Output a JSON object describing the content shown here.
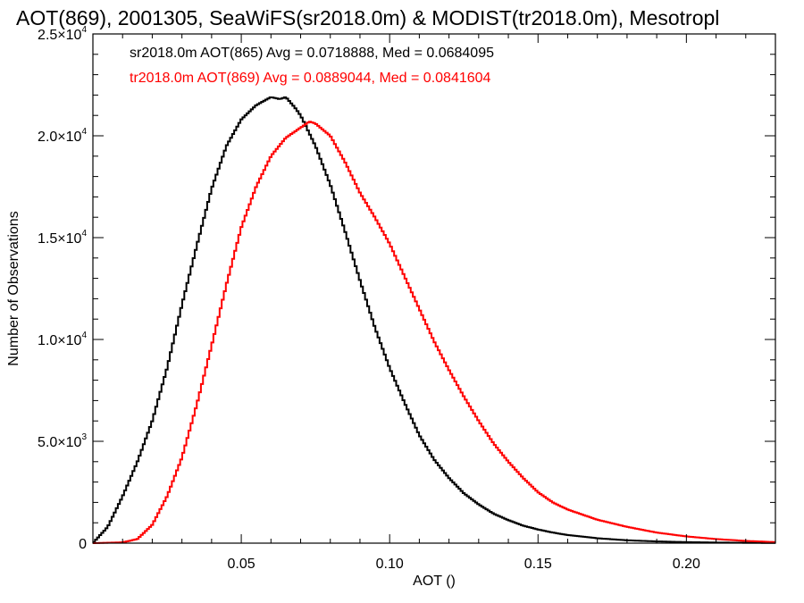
{
  "chart_data": {
    "type": "line",
    "title": "AOT(869), 2001305, SeaWiFS(sr2018.0m) & MODIST(tr2018.0m), Mesotropl",
    "xlabel": "AOT ()",
    "ylabel": "Number of Observations",
    "xlim": [
      0.0,
      0.23
    ],
    "ylim": [
      0,
      25000
    ],
    "x_ticks": [
      {
        "value": 0.05,
        "label": "0.05"
      },
      {
        "value": 0.1,
        "label": "0.10"
      },
      {
        "value": 0.15,
        "label": "0.15"
      },
      {
        "value": 0.2,
        "label": "0.20"
      }
    ],
    "y_ticks": [
      {
        "value": 0,
        "base": "0",
        "exp": ""
      },
      {
        "value": 5000,
        "base": "5.0×10",
        "exp": "3"
      },
      {
        "value": 10000,
        "base": "1.0×10",
        "exp": "4"
      },
      {
        "value": 15000,
        "base": "1.5×10",
        "exp": "4"
      },
      {
        "value": 20000,
        "base": "2.0×10",
        "exp": "4"
      },
      {
        "value": 25000,
        "base": "2.5×10",
        "exp": "4"
      }
    ],
    "grid": false,
    "annotations": [
      {
        "text": "sr2018.0m AOT(865) Avg = 0.0718888, Med = 0.0684095",
        "color": "#000000"
      },
      {
        "text": "tr2018.0m AOT(869) Avg = 0.0889044, Med = 0.0841604",
        "color": "#ff0000"
      }
    ],
    "series": [
      {
        "color": "#000000",
        "x": [
          0.0,
          0.005,
          0.01,
          0.015,
          0.02,
          0.025,
          0.03,
          0.035,
          0.04,
          0.045,
          0.05,
          0.055,
          0.06,
          0.063,
          0.065,
          0.068,
          0.07,
          0.075,
          0.08,
          0.085,
          0.09,
          0.095,
          0.1,
          0.105,
          0.11,
          0.115,
          0.12,
          0.125,
          0.13,
          0.135,
          0.14,
          0.145,
          0.15,
          0.155,
          0.16,
          0.17,
          0.18,
          0.19,
          0.2,
          0.21,
          0.22,
          0.23
        ],
        "values": [
          0,
          800,
          2300,
          4000,
          6000,
          8600,
          11700,
          14600,
          17400,
          19500,
          20800,
          21500,
          21900,
          21800,
          21900,
          21400,
          21000,
          19500,
          17600,
          15300,
          12900,
          10600,
          8600,
          6900,
          5300,
          4100,
          3200,
          2450,
          1900,
          1450,
          1130,
          860,
          670,
          520,
          400,
          240,
          140,
          85,
          50,
          30,
          18,
          10
        ]
      },
      {
        "color": "#ff0000",
        "x": [
          0.0,
          0.01,
          0.015,
          0.02,
          0.025,
          0.03,
          0.035,
          0.04,
          0.045,
          0.05,
          0.055,
          0.06,
          0.065,
          0.07,
          0.073,
          0.075,
          0.08,
          0.085,
          0.09,
          0.095,
          0.1,
          0.105,
          0.11,
          0.115,
          0.12,
          0.125,
          0.13,
          0.135,
          0.14,
          0.145,
          0.15,
          0.155,
          0.16,
          0.17,
          0.18,
          0.19,
          0.2,
          0.21,
          0.22,
          0.23
        ],
        "values": [
          0,
          40,
          200,
          900,
          2300,
          4200,
          6800,
          9700,
          12700,
          15500,
          17500,
          19000,
          19900,
          20400,
          20700,
          20600,
          20000,
          18700,
          17200,
          16000,
          14700,
          13100,
          11500,
          9900,
          8500,
          7200,
          6000,
          4900,
          4000,
          3200,
          2500,
          2000,
          1650,
          1150,
          800,
          520,
          330,
          200,
          110,
          50
        ]
      }
    ]
  }
}
